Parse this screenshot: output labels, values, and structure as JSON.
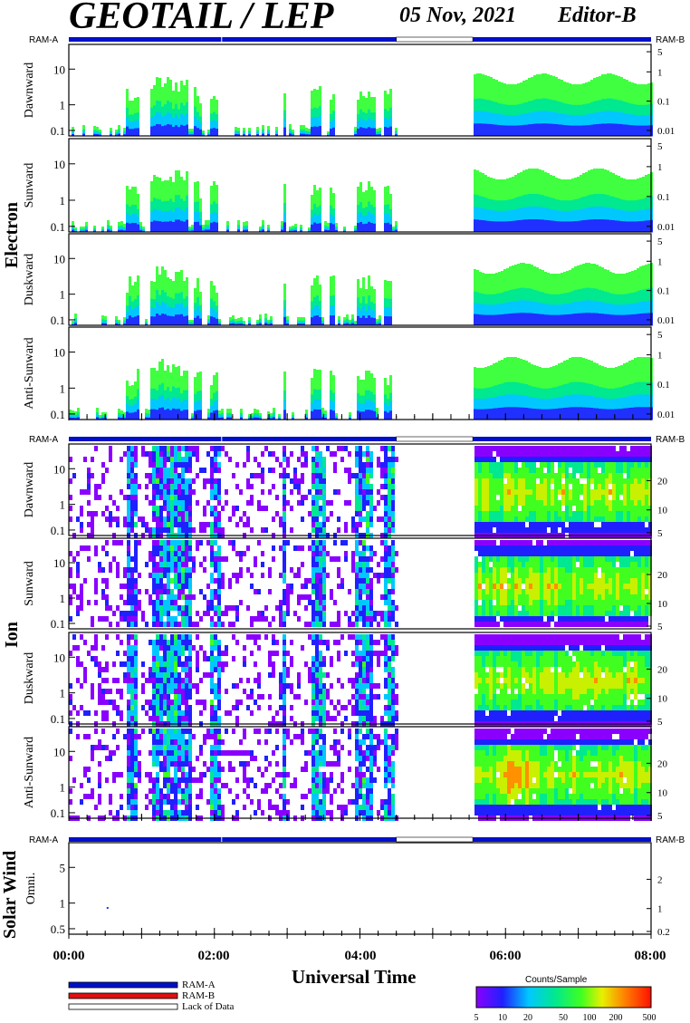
{
  "header": {
    "title": "GEOTAIL / LEP",
    "date": "05 Nov, 2021",
    "editor": "Editor-B"
  },
  "groups": [
    "Electron",
    "Ion",
    "Solar Wind"
  ],
  "ram_labels": {
    "left": "RAM-A",
    "right": "RAM-B"
  },
  "legend": {
    "items": [
      "RAM-A",
      "RAM-B",
      "Lack of Data"
    ],
    "colors": [
      "#0010c8",
      "#e01010",
      "#ffffff"
    ]
  },
  "colorbar": {
    "title": "Counts/Sample",
    "ticks": [
      "5",
      "10",
      "20",
      "50",
      "100",
      "200",
      "500"
    ]
  },
  "chart_data": {
    "type": "heatmap",
    "xlabel": "Universal Time",
    "x_ticks": [
      "00:00",
      "02:00",
      "04:00",
      "06:00",
      "08:00"
    ],
    "x_range_hours": [
      0,
      8
    ],
    "data_gap_hours": [
      4.5,
      5.55
    ],
    "panels": [
      {
        "group": "Electron",
        "ylabel": "Dawnward",
        "left_ticks": [
          "10",
          "1",
          "0.1"
        ],
        "right_ticks": [
          "5",
          "1",
          "0.1",
          "0.01"
        ]
      },
      {
        "group": "Electron",
        "ylabel": "Sunward",
        "left_ticks": [
          "10",
          "1",
          "0.1"
        ],
        "right_ticks": [
          "5",
          "1",
          "0.1",
          "0.01"
        ]
      },
      {
        "group": "Electron",
        "ylabel": "Duskward",
        "left_ticks": [
          "10",
          "1",
          "0.1"
        ],
        "right_ticks": [
          "5",
          "1",
          "0.1",
          "0.01"
        ]
      },
      {
        "group": "Electron",
        "ylabel": "Anti-Sunward",
        "left_ticks": [
          "10",
          "1",
          "0.1"
        ],
        "right_ticks": [
          "5",
          "1",
          "0.1",
          "0.01"
        ]
      },
      {
        "group": "Ion",
        "ylabel": "Dawnward",
        "left_ticks": [
          "10",
          "1",
          "0.1"
        ],
        "right_ticks": [
          "20",
          "10",
          "5"
        ]
      },
      {
        "group": "Ion",
        "ylabel": "Sunward",
        "left_ticks": [
          "10",
          "1",
          "0.1"
        ],
        "right_ticks": [
          "20",
          "10",
          "5"
        ]
      },
      {
        "group": "Ion",
        "ylabel": "Duskward",
        "left_ticks": [
          "10",
          "1",
          "0.1"
        ],
        "right_ticks": [
          "20",
          "10",
          "5"
        ]
      },
      {
        "group": "Ion",
        "ylabel": "Anti-Sunward",
        "left_ticks": [
          "10",
          "1",
          "0.1"
        ],
        "right_ticks": [
          "20",
          "10",
          "5"
        ]
      },
      {
        "group": "Solar Wind",
        "ylabel": "Omni.",
        "left_ticks": [
          "5",
          "1",
          "0.5"
        ],
        "right_ticks": [
          "2",
          "1",
          "0.2"
        ]
      }
    ],
    "ram_bar": {
      "ram_a_hours": [
        [
          0,
          4.5
        ],
        [
          5.55,
          8
        ]
      ],
      "lack_hours": [
        [
          4.5,
          5.55
        ]
      ]
    }
  }
}
